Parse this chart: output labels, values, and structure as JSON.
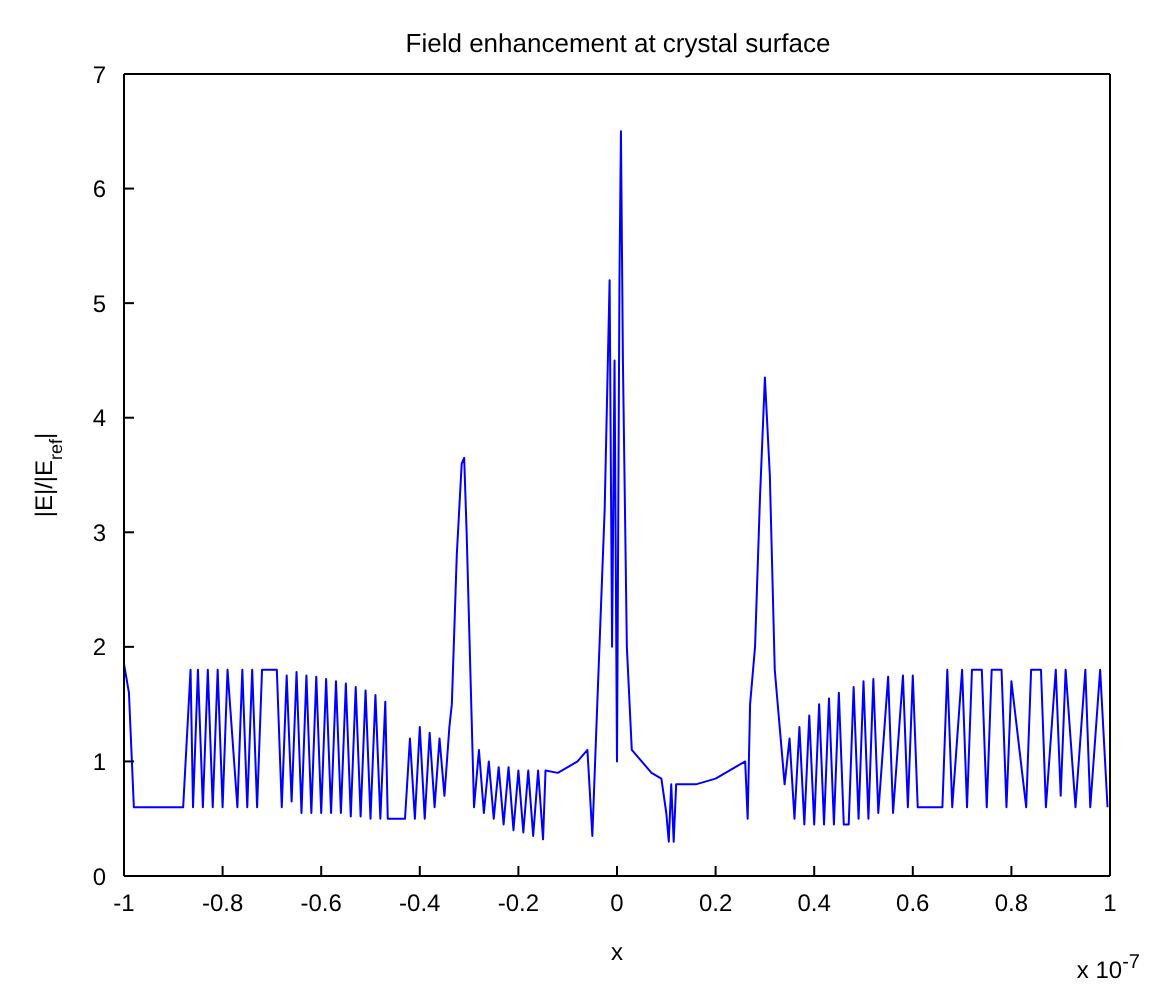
{
  "chart_data": {
    "type": "line",
    "title": "Field enhancement at crystal surface",
    "xlabel": "x",
    "ylabel": "|E|/|E$_{ref}$|",
    "annotations": [
      "x 10$^{-7}$"
    ],
    "xlim": [
      -1,
      1
    ],
    "xticks": [
      -1,
      -0.8,
      -0.6,
      -0.4,
      -0.2,
      0,
      0.2,
      0.4,
      0.6,
      0.8,
      1
    ],
    "ylim": [
      0,
      7
    ],
    "yticks": [
      0,
      1,
      2,
      3,
      4,
      5,
      6,
      7
    ],
    "grid": false,
    "marker": "none",
    "line_style": "solid",
    "series": [
      {
        "color": "#0000ff",
        "x": [
          -1,
          -0.99,
          -0.98,
          -0.88,
          -0.865,
          -0.86,
          -0.85,
          -0.84,
          -0.83,
          -0.82,
          -0.81,
          -0.8,
          -0.79,
          -0.77,
          -0.76,
          -0.75,
          -0.74,
          -0.73,
          -0.72,
          -0.69,
          -0.68,
          -0.67,
          -0.66,
          -0.65,
          -0.64,
          -0.63,
          -0.62,
          -0.61,
          -0.6,
          -0.59,
          -0.58,
          -0.57,
          -0.56,
          -0.55,
          -0.54,
          -0.53,
          -0.52,
          -0.51,
          -0.5,
          -0.49,
          -0.48,
          -0.47,
          -0.465,
          -0.43,
          -0.42,
          -0.41,
          -0.4,
          -0.39,
          -0.38,
          -0.37,
          -0.36,
          -0.35,
          -0.34,
          -0.335,
          -0.325,
          -0.315,
          -0.31,
          -0.305,
          -0.295,
          -0.29,
          -0.28,
          -0.27,
          -0.26,
          -0.25,
          -0.24,
          -0.23,
          -0.22,
          -0.21,
          -0.2,
          -0.19,
          -0.18,
          -0.17,
          -0.16,
          -0.15,
          -0.145,
          -0.12,
          -0.08,
          -0.06,
          -0.05,
          -0.04,
          -0.025,
          -0.015,
          -0.01,
          -0.005,
          0,
          0.005,
          0.008,
          0.012,
          0.02,
          0.03,
          0.05,
          0.07,
          0.09,
          0.1,
          0.105,
          0.11,
          0.115,
          0.12,
          0.16,
          0.2,
          0.24,
          0.26,
          0.265,
          0.27,
          0.28,
          0.29,
          0.3,
          0.31,
          0.32,
          0.33,
          0.34,
          0.35,
          0.36,
          0.37,
          0.38,
          0.39,
          0.4,
          0.41,
          0.42,
          0.43,
          0.44,
          0.45,
          0.46,
          0.47,
          0.48,
          0.49,
          0.5,
          0.51,
          0.52,
          0.53,
          0.55,
          0.56,
          0.58,
          0.59,
          0.6,
          0.61,
          0.66,
          0.67,
          0.68,
          0.7,
          0.71,
          0.72,
          0.74,
          0.75,
          0.76,
          0.78,
          0.79,
          0.8,
          0.83,
          0.84,
          0.86,
          0.87,
          0.89,
          0.9,
          0.91,
          0.93,
          0.95,
          0.96,
          0.98,
          0.995
        ],
        "values": [
          1.85,
          1.6,
          0.6,
          0.6,
          1.8,
          0.6,
          1.8,
          0.6,
          1.8,
          0.6,
          1.8,
          0.6,
          1.8,
          0.6,
          1.8,
          0.6,
          1.8,
          0.6,
          1.8,
          1.8,
          0.6,
          1.75,
          0.65,
          1.78,
          0.55,
          1.75,
          0.55,
          1.74,
          0.55,
          1.72,
          0.55,
          1.7,
          0.55,
          1.68,
          0.52,
          1.65,
          0.52,
          1.62,
          0.5,
          1.58,
          0.5,
          1.52,
          0.5,
          0.5,
          1.2,
          0.5,
          1.3,
          0.5,
          1.25,
          0.6,
          1.2,
          0.7,
          1.3,
          1.5,
          2.8,
          3.6,
          3.65,
          3.0,
          1.4,
          0.6,
          1.1,
          0.55,
          1.0,
          0.5,
          0.95,
          0.45,
          0.95,
          0.4,
          0.92,
          0.38,
          0.92,
          0.35,
          0.92,
          0.32,
          0.92,
          0.9,
          1.0,
          1.1,
          0.35,
          1.5,
          3.2,
          5.2,
          2.0,
          4.5,
          1.0,
          5.2,
          6.5,
          4.5,
          2.0,
          1.1,
          1.0,
          0.9,
          0.85,
          0.55,
          0.3,
          0.8,
          0.3,
          0.8,
          0.8,
          0.85,
          0.95,
          1.0,
          0.5,
          1.5,
          2.0,
          3.3,
          4.35,
          3.5,
          1.8,
          1.3,
          0.8,
          1.2,
          0.5,
          1.3,
          0.45,
          1.4,
          0.45,
          1.5,
          0.45,
          1.55,
          0.45,
          1.6,
          0.45,
          0.45,
          1.65,
          0.5,
          1.7,
          0.5,
          1.72,
          0.55,
          1.74,
          0.55,
          1.75,
          0.6,
          1.75,
          0.6,
          0.6,
          1.8,
          0.6,
          1.8,
          0.6,
          1.8,
          1.8,
          0.6,
          1.8,
          1.8,
          0.6,
          1.7,
          0.6,
          1.8,
          1.8,
          0.6,
          1.8,
          0.7,
          1.8,
          0.6,
          1.8,
          0.6,
          1.8,
          0.6
        ]
      }
    ]
  }
}
